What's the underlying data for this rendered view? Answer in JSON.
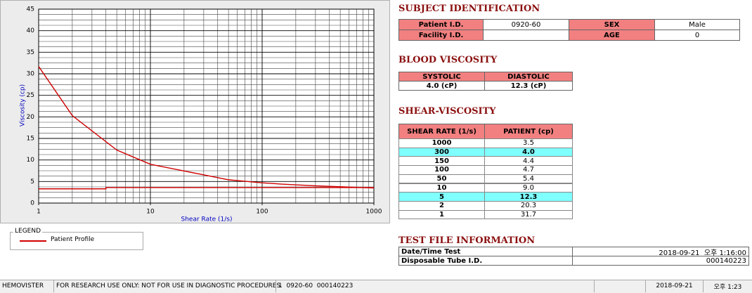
{
  "chart_data": {
    "type": "line",
    "y_label": "Viscosity (cp)",
    "x_label": "Shear Rate (1/s)",
    "xscale": "log",
    "xlim": [
      1,
      1000
    ],
    "xticks": [
      1,
      10,
      100,
      1000
    ],
    "ylim": [
      0,
      45
    ],
    "yticks": [
      0,
      5,
      10,
      15,
      20,
      25,
      30,
      35,
      40,
      45
    ],
    "grid": true,
    "legend_title": "LEGEND",
    "series": [
      {
        "name": "Patient Profile",
        "color": "#d00000",
        "x": [
          1,
          2,
          5,
          10,
          50,
          100,
          150,
          300,
          1000
        ],
        "values": [
          31.7,
          20.3,
          12.3,
          9.0,
          5.4,
          4.7,
          4.4,
          4.0,
          3.5
        ]
      },
      {
        "color": "#d00000",
        "x": [
          1,
          4,
          4,
          1000
        ],
        "values": [
          3.3,
          3.3,
          3.6,
          3.6
        ]
      }
    ]
  },
  "subject": {
    "title": "SUBJECT IDENTIFICATION",
    "rows": [
      [
        "Patient I.D.",
        "0920-60",
        "SEX",
        "Male"
      ],
      [
        "Facility I.D.",
        null,
        "AGE",
        "0"
      ]
    ]
  },
  "blood_viscosity": {
    "title": "BLOOD VISCOSITY",
    "headers": [
      "SYSTOLIC",
      "DIASTOLIC"
    ],
    "values": [
      "4.0 (cP)",
      "12.3 (cP)"
    ]
  },
  "shear_viscosity": {
    "title": "SHEAR-VISCOSITY",
    "headers": [
      "SHEAR RATE (1/s)",
      "PATIENT (cp)"
    ],
    "highlight": [
      1,
      6
    ],
    "rows": [
      [
        "1000",
        "3.5"
      ],
      [
        "300",
        "4.0"
      ],
      [
        "150",
        "4.4"
      ],
      [
        "100",
        "4.7"
      ],
      [
        "50",
        "5.4"
      ],
      [
        "10",
        "9.0"
      ],
      [
        "5",
        "12.3"
      ],
      [
        "2",
        "20.3"
      ],
      [
        "1",
        "31.7"
      ]
    ]
  },
  "test_file": {
    "title": "TEST FILE INFORMATION",
    "rows": [
      [
        "Date/Time Test",
        "2018-09-21  오후 1:16:00"
      ],
      [
        "Disposable Tube I.D.",
        "000140223"
      ]
    ]
  },
  "status_bar": [
    "HEMOVISTER",
    "FOR RESEARCH USE ONLY: NOT FOR USE IN DIAGNOSTIC PROCEDURES",
    "1  0920-60  000140223",
    null,
    "2018-09-21",
    "오후 1:23"
  ]
}
